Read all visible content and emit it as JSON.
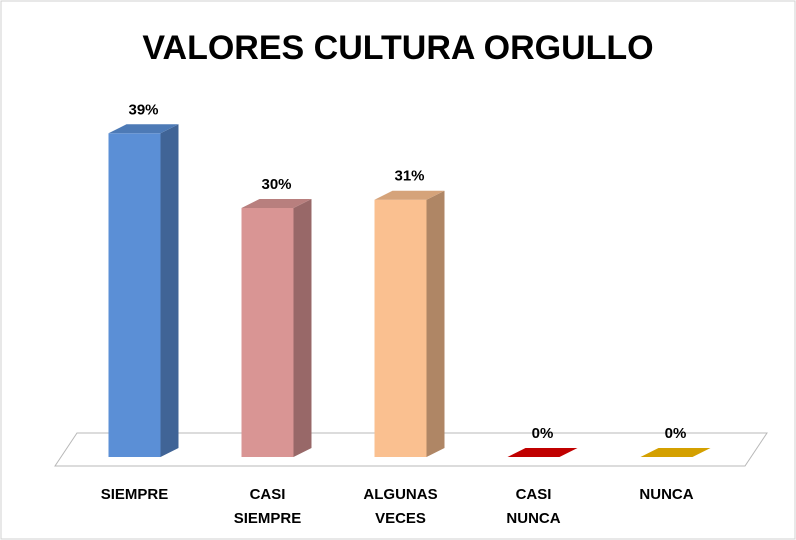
{
  "chart_data": {
    "type": "bar3d",
    "title": "VALORES CULTURA ORGULLO",
    "categories": [
      "SIEMPRE",
      "CASI SIEMPRE",
      "ALGUNAS VECES",
      "CASI NUNCA",
      "NUNCA"
    ],
    "values": [
      39,
      30,
      31,
      0,
      0
    ],
    "value_labels": [
      "39%",
      "30%",
      "31%",
      "0%",
      "0%"
    ],
    "colors": [
      "#5b8fd6",
      "#d99594",
      "#fac090",
      "#c00000",
      "#d4a000"
    ]
  }
}
